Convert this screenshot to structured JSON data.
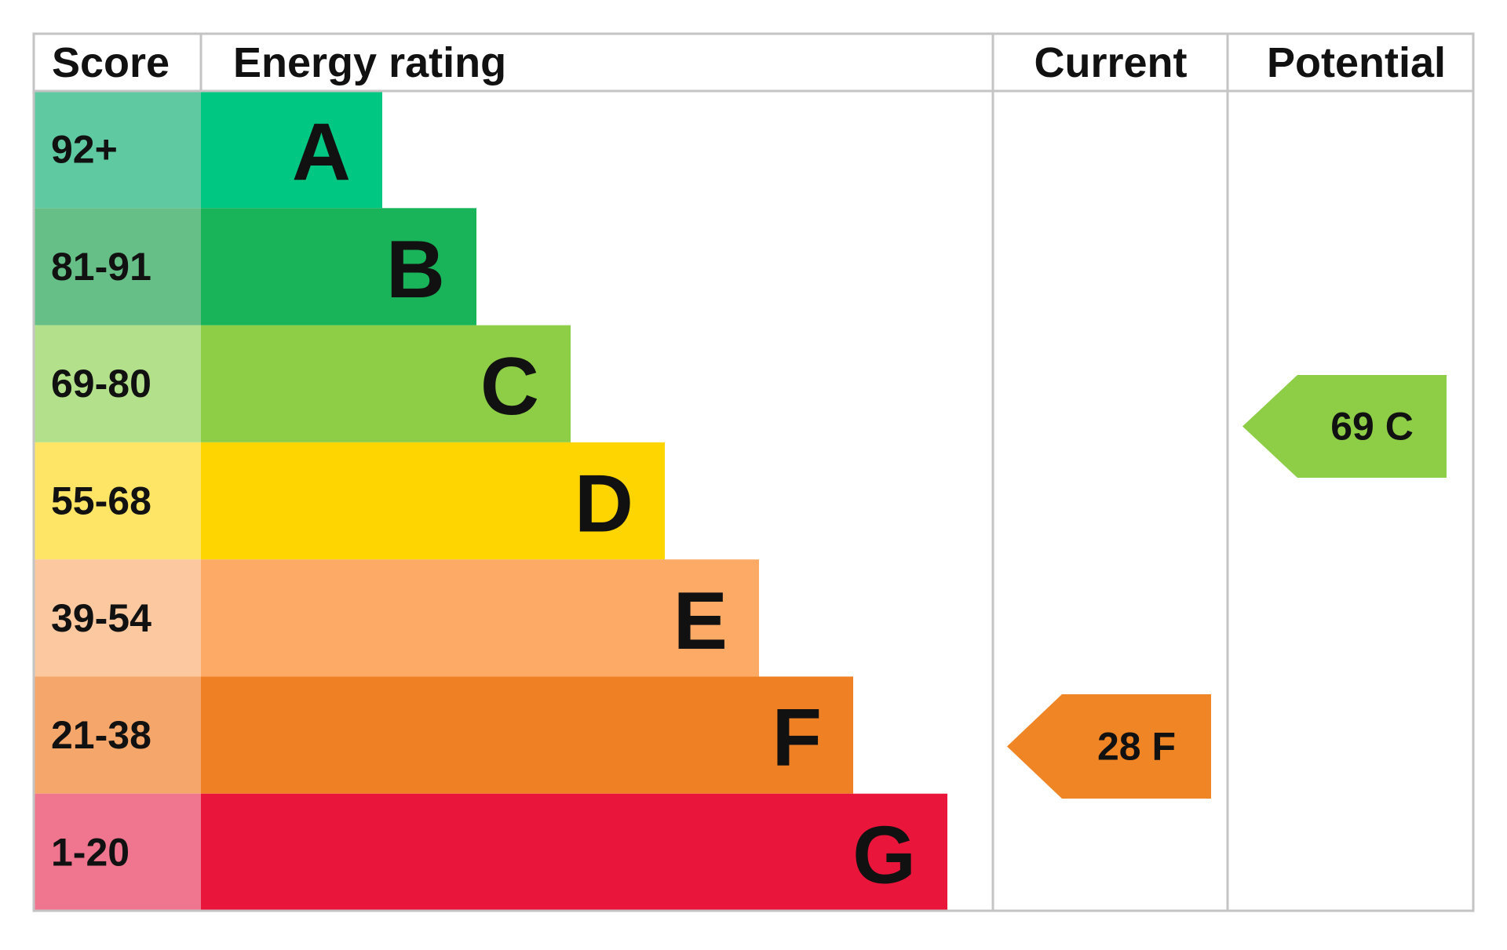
{
  "header": {
    "score": "Score",
    "rating": "Energy rating",
    "current": "Current",
    "potential": "Potential"
  },
  "rows": [
    {
      "score": "92+",
      "letter": "A",
      "color": "#00c781",
      "score_color": "#5fc9a2"
    },
    {
      "score": "81-91",
      "letter": "B",
      "color": "#19b459",
      "score_color": "#66bf86"
    },
    {
      "score": "69-80",
      "letter": "C",
      "color": "#8dce46",
      "score_color": "#b3e08a"
    },
    {
      "score": "55-68",
      "letter": "D",
      "color": "#ffd500",
      "score_color": "#ffe566"
    },
    {
      "score": "39-54",
      "letter": "E",
      "color": "#fcaa65",
      "score_color": "#fcc8a0"
    },
    {
      "score": "21-38",
      "letter": "F",
      "color": "#ef8023",
      "score_color": "#f5a66a"
    },
    {
      "score": "1-20",
      "letter": "G",
      "color": "#e9153b",
      "score_color": "#f07690"
    }
  ],
  "current": {
    "label": "28 F",
    "color": "#f08525"
  },
  "potential": {
    "label": "69 C",
    "color": "#8dce46"
  }
}
